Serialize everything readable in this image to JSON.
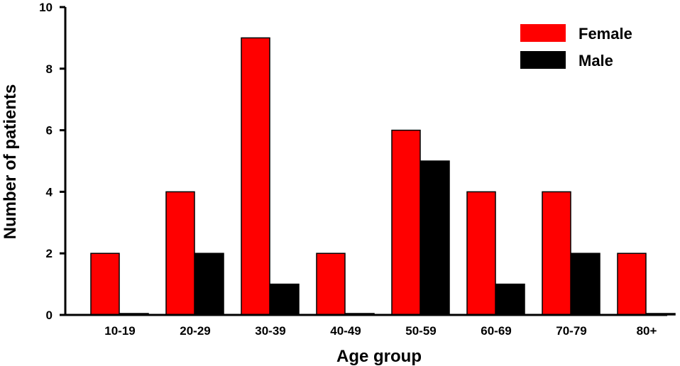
{
  "chart_data": {
    "type": "bar",
    "title": "",
    "xlabel": "Age group",
    "ylabel": "Number of patients",
    "categories": [
      "10-19",
      "20-29",
      "30-39",
      "40-49",
      "50-59",
      "60-69",
      "70-79",
      "80+"
    ],
    "ylim": [
      0,
      10
    ],
    "yticks": [
      "0",
      "2",
      "4",
      "6",
      "8",
      "10"
    ],
    "series": [
      {
        "name": "Female",
        "color": "#ff0000",
        "values": [
          2,
          4,
          9,
          2,
          6,
          4,
          4,
          2
        ]
      },
      {
        "name": "Male",
        "color": "#000000",
        "values": [
          0,
          2,
          1,
          0,
          5,
          1,
          2,
          0
        ]
      }
    ],
    "legend_position": "top-right",
    "grid": false
  }
}
